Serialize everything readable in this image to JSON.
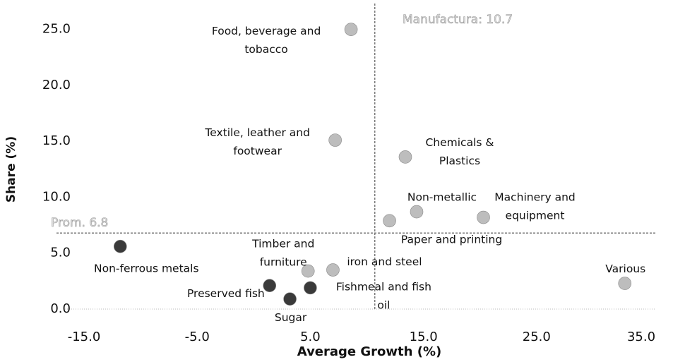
{
  "chart_data": {
    "type": "scatter",
    "xlabel": "Average Growth (%)",
    "ylabel": "Share (%)",
    "labels": [
      [
        "Food, beverage and",
        "tobacco"
      ],
      [
        "Textile, leather and",
        "footwear"
      ],
      [
        "Chemicals &",
        "Plastics"
      ],
      [
        "Non-metallic"
      ],
      [
        "Machinery and",
        "equipment"
      ],
      [
        "Paper and printing"
      ],
      [
        "Non-ferrous metals"
      ],
      [
        "Timber and",
        "furniture"
      ],
      [
        "iron and steel"
      ],
      [
        "Preserved fish"
      ],
      [
        "Fishmeal and fish",
        "oil"
      ],
      [
        "Sugar"
      ],
      [
        "Various"
      ]
    ],
    "x": [
      8.6,
      7.2,
      13.4,
      14.4,
      20.3,
      12.0,
      -11.8,
      4.8,
      7.0,
      1.4,
      5.0,
      3.2,
      32.8
    ],
    "y": [
      25.0,
      15.1,
      13.6,
      8.7,
      8.2,
      7.9,
      5.6,
      3.4,
      3.5,
      2.1,
      1.9,
      0.9,
      2.3
    ],
    "colors": [
      "#bdbdbd",
      "#bdbdbd",
      "#bdbdbd",
      "#bdbdbd",
      "#bdbdbd",
      "#bdbdbd",
      "#3a3a3a",
      "#bdbdbd",
      "#bdbdbd",
      "#3a3a3a",
      "#3a3a3a",
      "#3a3a3a",
      "#bdbdbd"
    ],
    "xlim": [
      -17,
      36
    ],
    "ylim": [
      0,
      27
    ],
    "xticks": [
      {
        "value": -15,
        "label": "-15.0"
      },
      {
        "value": -5,
        "label": "-5.0"
      },
      {
        "value": 5,
        "label": "5.0"
      },
      {
        "value": 15,
        "label": "15.0"
      },
      {
        "value": 25,
        "label": "25.0"
      },
      {
        "value": 35,
        "label": "35.0"
      }
    ],
    "yticks": [
      {
        "value": 0,
        "label": "0.0"
      },
      {
        "value": 5,
        "label": "5.0"
      },
      {
        "value": 10,
        "label": "10.0"
      },
      {
        "value": 15,
        "label": "15.0"
      },
      {
        "value": 20,
        "label": "20.0"
      },
      {
        "value": 25,
        "label": "25.0"
      }
    ],
    "x_ref": {
      "value": 10.7,
      "label": "Manufactura:  10.7"
    },
    "y_ref": {
      "value": 6.8,
      "label": "Prom. 6.8"
    }
  }
}
